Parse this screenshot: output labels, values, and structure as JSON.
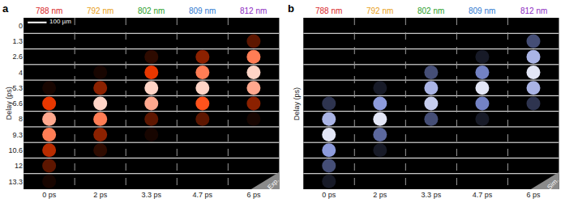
{
  "chart_data": [
    {
      "type": "heatmap",
      "panel": "a",
      "corner_label": "Exp.",
      "scale_bar": "100 µm",
      "ylabel": "Delay (ps)",
      "tick_labels": true,
      "color": "#ff3c00",
      "zlim": [
        0,
        1
      ],
      "column_labels": [
        "788 nm",
        "792 nm",
        "802 nm",
        "809 nm",
        "812 nm"
      ],
      "column_colors": [
        "#d8262a",
        "#e8a020",
        "#2ca02c",
        "#2f7ad0",
        "#8e2cc2"
      ],
      "categories": [
        "0 ps",
        "2 ps",
        "3.3 ps",
        "4.7 ps",
        "6 ps"
      ],
      "y": [
        0,
        1.3,
        2.6,
        4,
        5.3,
        6.6,
        8,
        9.3,
        10.6,
        12,
        13.3
      ],
      "cells": [
        [
          0,
          0,
          0,
          0,
          0
        ],
        [
          0,
          0,
          0,
          0,
          0.2
        ],
        [
          0,
          0,
          0.1,
          0.3,
          0.7
        ],
        [
          0,
          0.05,
          0.5,
          0.7,
          0.9
        ],
        [
          0.05,
          0.3,
          0.9,
          0.9,
          0.8
        ],
        [
          0.5,
          0.9,
          0.8,
          0.6,
          0.3
        ],
        [
          0.8,
          0.7,
          0.2,
          0.2,
          0.05
        ],
        [
          0.7,
          0.3,
          0.05,
          0,
          0
        ],
        [
          0.4,
          0.1,
          0,
          0,
          0
        ],
        [
          0.2,
          0,
          0,
          0,
          0
        ],
        [
          0.05,
          0,
          0,
          0,
          0
        ]
      ]
    },
    {
      "type": "heatmap",
      "panel": "b",
      "corner_label": "Sim.",
      "ylabel": "Delay (ps)",
      "tick_labels": "x",
      "color": "#7f8fd8",
      "zlim": [
        0,
        1
      ],
      "column_labels": [
        "788 nm",
        "792 nm",
        "802 nm",
        "809 nm",
        "812 nm"
      ],
      "column_colors": [
        "#d8262a",
        "#e8a020",
        "#2ca02c",
        "#2f7ad0",
        "#8e2cc2"
      ],
      "categories": [
        "0 ps",
        "2 ps",
        "3.3 ps",
        "4.7 ps",
        "6 ps"
      ],
      "y": [
        0,
        1.3,
        2.6,
        4,
        5.3,
        6.6,
        8,
        9.3,
        10.6,
        12,
        13.3
      ],
      "cells": [
        [
          0,
          0,
          0,
          0,
          0
        ],
        [
          0,
          0,
          0,
          0,
          0.3
        ],
        [
          0,
          0,
          0,
          0.1,
          0.7
        ],
        [
          0,
          0,
          0.3,
          0.5,
          0.9
        ],
        [
          0,
          0.1,
          0.7,
          0.9,
          0.7
        ],
        [
          0.2,
          0.6,
          0.8,
          0.5,
          0.2
        ],
        [
          0.7,
          0.9,
          0.3,
          0.1,
          0
        ],
        [
          0.9,
          0.4,
          0,
          0,
          0
        ],
        [
          0.6,
          0.1,
          0,
          0,
          0
        ],
        [
          0.3,
          0,
          0,
          0,
          0
        ],
        [
          0.1,
          0,
          0,
          0,
          0
        ]
      ]
    }
  ]
}
